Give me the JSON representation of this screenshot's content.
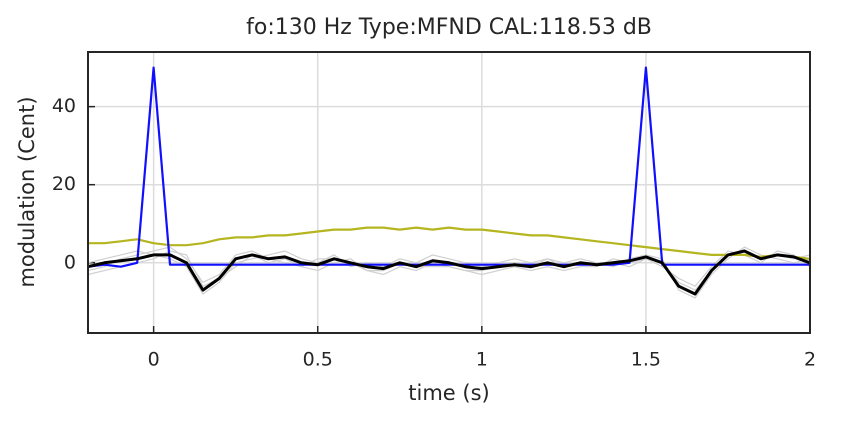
{
  "chart_data": {
    "type": "line",
    "title": "fo:130 Hz  Type:MFND  CAL:118.53 dB",
    "xlabel": "time (s)",
    "ylabel": "modulation (Cent)",
    "x": [
      -0.2,
      -0.15,
      -0.1,
      -0.05,
      0,
      0.05,
      0.1,
      0.15,
      0.2,
      0.25,
      0.3,
      0.35,
      0.4,
      0.45,
      0.5,
      0.55,
      0.6,
      0.65,
      0.7,
      0.75,
      0.8,
      0.85,
      0.9,
      0.95,
      1,
      1.05,
      1.1,
      1.15,
      1.2,
      1.25,
      1.3,
      1.35,
      1.4,
      1.45,
      1.5,
      1.55,
      1.6,
      1.65,
      1.7,
      1.75,
      1.8,
      1.85,
      1.9,
      1.95,
      2
    ],
    "series": [
      {
        "color": "#cfcfcf",
        "values": [
          -2,
          -1,
          1,
          2,
          3,
          4,
          1,
          -5,
          -3,
          2,
          3,
          1,
          0,
          -1,
          -2,
          0,
          1,
          -2,
          -3,
          -1,
          -2,
          0,
          -1,
          -2,
          -3,
          -2,
          -1,
          -2,
          -1,
          -2,
          -1,
          -1,
          1,
          0,
          1,
          -1,
          -4,
          -6,
          -1,
          3,
          2,
          0,
          3,
          2,
          -1
        ]
      },
      {
        "color": "#cfcfcf",
        "values": [
          0,
          1,
          2,
          3,
          2,
          1,
          -1,
          -8,
          -5,
          0,
          1,
          2,
          3,
          1,
          0,
          2,
          -1,
          0,
          -1,
          1,
          0,
          2,
          1,
          0,
          -1,
          0,
          1,
          0,
          1,
          0,
          1,
          0,
          -1,
          1,
          2,
          1,
          -7,
          -9,
          -3,
          1,
          4,
          2,
          1,
          0,
          1
        ]
      },
      {
        "color": "#cfcfcf",
        "values": [
          -3,
          -2,
          -1,
          0,
          1,
          3,
          2,
          -6,
          -4,
          -1,
          2,
          0,
          1,
          -1,
          1,
          1,
          0,
          -2,
          -2,
          0,
          -1,
          -1,
          -1,
          -2,
          -2,
          -1,
          0,
          -1,
          1,
          -1,
          0,
          0,
          0,
          -1,
          1,
          0,
          -5,
          -7,
          -2,
          2,
          3,
          1,
          2,
          1,
          2
        ]
      },
      {
        "color": "#b5b520",
        "values": [
          5,
          5,
          5.5,
          6,
          5,
          4.5,
          4.5,
          5,
          6,
          6.5,
          6.5,
          7,
          7,
          7.5,
          8,
          8.5,
          8.5,
          9,
          9,
          8.5,
          9,
          8.5,
          9,
          8.5,
          8.5,
          8,
          7.5,
          7,
          7,
          6.5,
          6,
          5.5,
          5,
          4.5,
          4,
          3.5,
          3,
          2.5,
          2,
          2,
          2,
          1.5,
          2,
          1.5,
          1
        ]
      },
      {
        "color": "#1010ff",
        "values": [
          -1,
          -0.5,
          -1,
          0,
          50,
          -0.5,
          -0.5,
          -0.5,
          -0.5,
          -0.5,
          -0.5,
          -0.5,
          -0.5,
          -0.5,
          -0.5,
          -0.5,
          -0.5,
          -0.5,
          -0.5,
          -0.5,
          -0.5,
          -0.5,
          -0.5,
          -0.5,
          -0.5,
          -0.5,
          -0.5,
          -0.5,
          -0.5,
          -0.5,
          -0.5,
          -0.5,
          -0.5,
          0,
          50,
          -0.5,
          -0.5,
          -0.5,
          -0.5,
          -0.5,
          -0.5,
          -0.5,
          -0.5,
          -0.5,
          -0.5
        ]
      },
      {
        "color": "#000000",
        "values": [
          -1,
          0,
          0.5,
          1,
          2,
          2,
          0,
          -7,
          -4,
          1,
          2,
          1,
          1.5,
          0,
          -0.5,
          1,
          0,
          -1,
          -1.5,
          0,
          -1,
          0.5,
          0,
          -1,
          -1.5,
          -1,
          -0.5,
          -1,
          0,
          -1,
          0,
          -0.5,
          0,
          0.5,
          1.5,
          0,
          -6,
          -8,
          -2,
          2,
          3,
          1,
          2,
          1.5,
          0
        ]
      }
    ],
    "xlim": [
      -0.2,
      2
    ],
    "xticks": [
      0,
      0.5,
      1,
      1.5,
      2
    ],
    "ylim": [
      -18,
      54
    ],
    "yticks": [
      0,
      20,
      40
    ],
    "grid": true
  }
}
